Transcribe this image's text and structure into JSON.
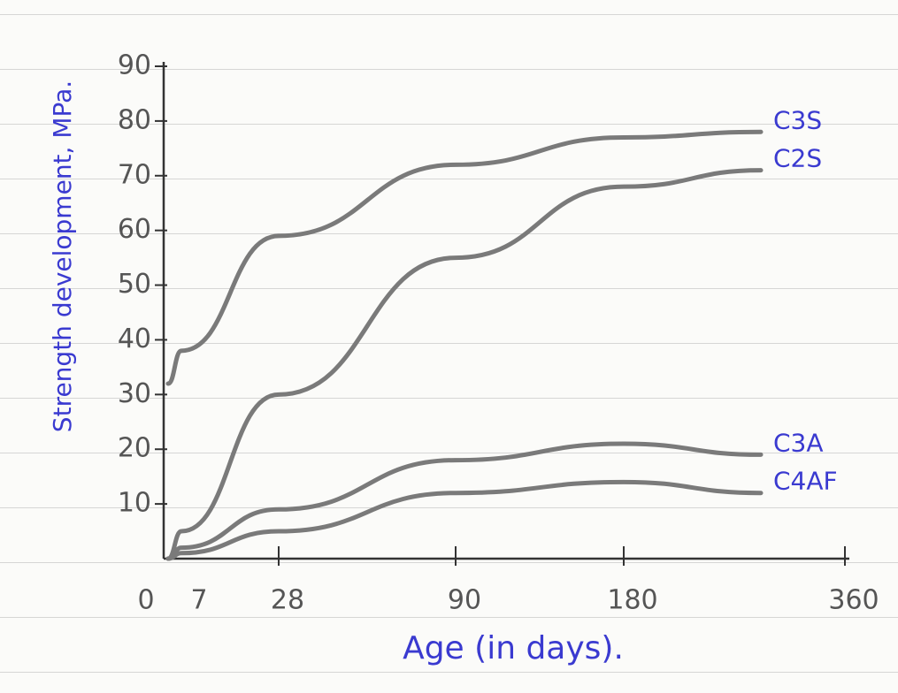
{
  "chart_data": {
    "type": "line",
    "y_label": "Strength development, MPa.",
    "x_label": "Age (in days).",
    "categories": [
      "0",
      "7",
      "28",
      "90",
      "180",
      null,
      "360"
    ],
    "series": [
      {
        "name": "C3S",
        "color": "#7a7a7a",
        "values": [
          32,
          38,
          59,
          72,
          77,
          78,
          null
        ]
      },
      {
        "name": "C2S",
        "color": "#7a7a7a",
        "values": [
          0,
          5,
          30,
          55,
          68,
          71,
          null
        ]
      },
      {
        "name": "C3A",
        "color": "#7a7a7a",
        "values": [
          0,
          2,
          9,
          18,
          21,
          19,
          null
        ]
      },
      {
        "name": "C4AF",
        "color": "#7a7a7a",
        "values": [
          0,
          1,
          5,
          12,
          14,
          12,
          null
        ]
      }
    ],
    "ylim": [
      0,
      90
    ],
    "yticks": [
      10,
      20,
      30,
      40,
      50,
      60,
      70,
      80,
      90
    ],
    "label_color": "#3a3ad0"
  }
}
